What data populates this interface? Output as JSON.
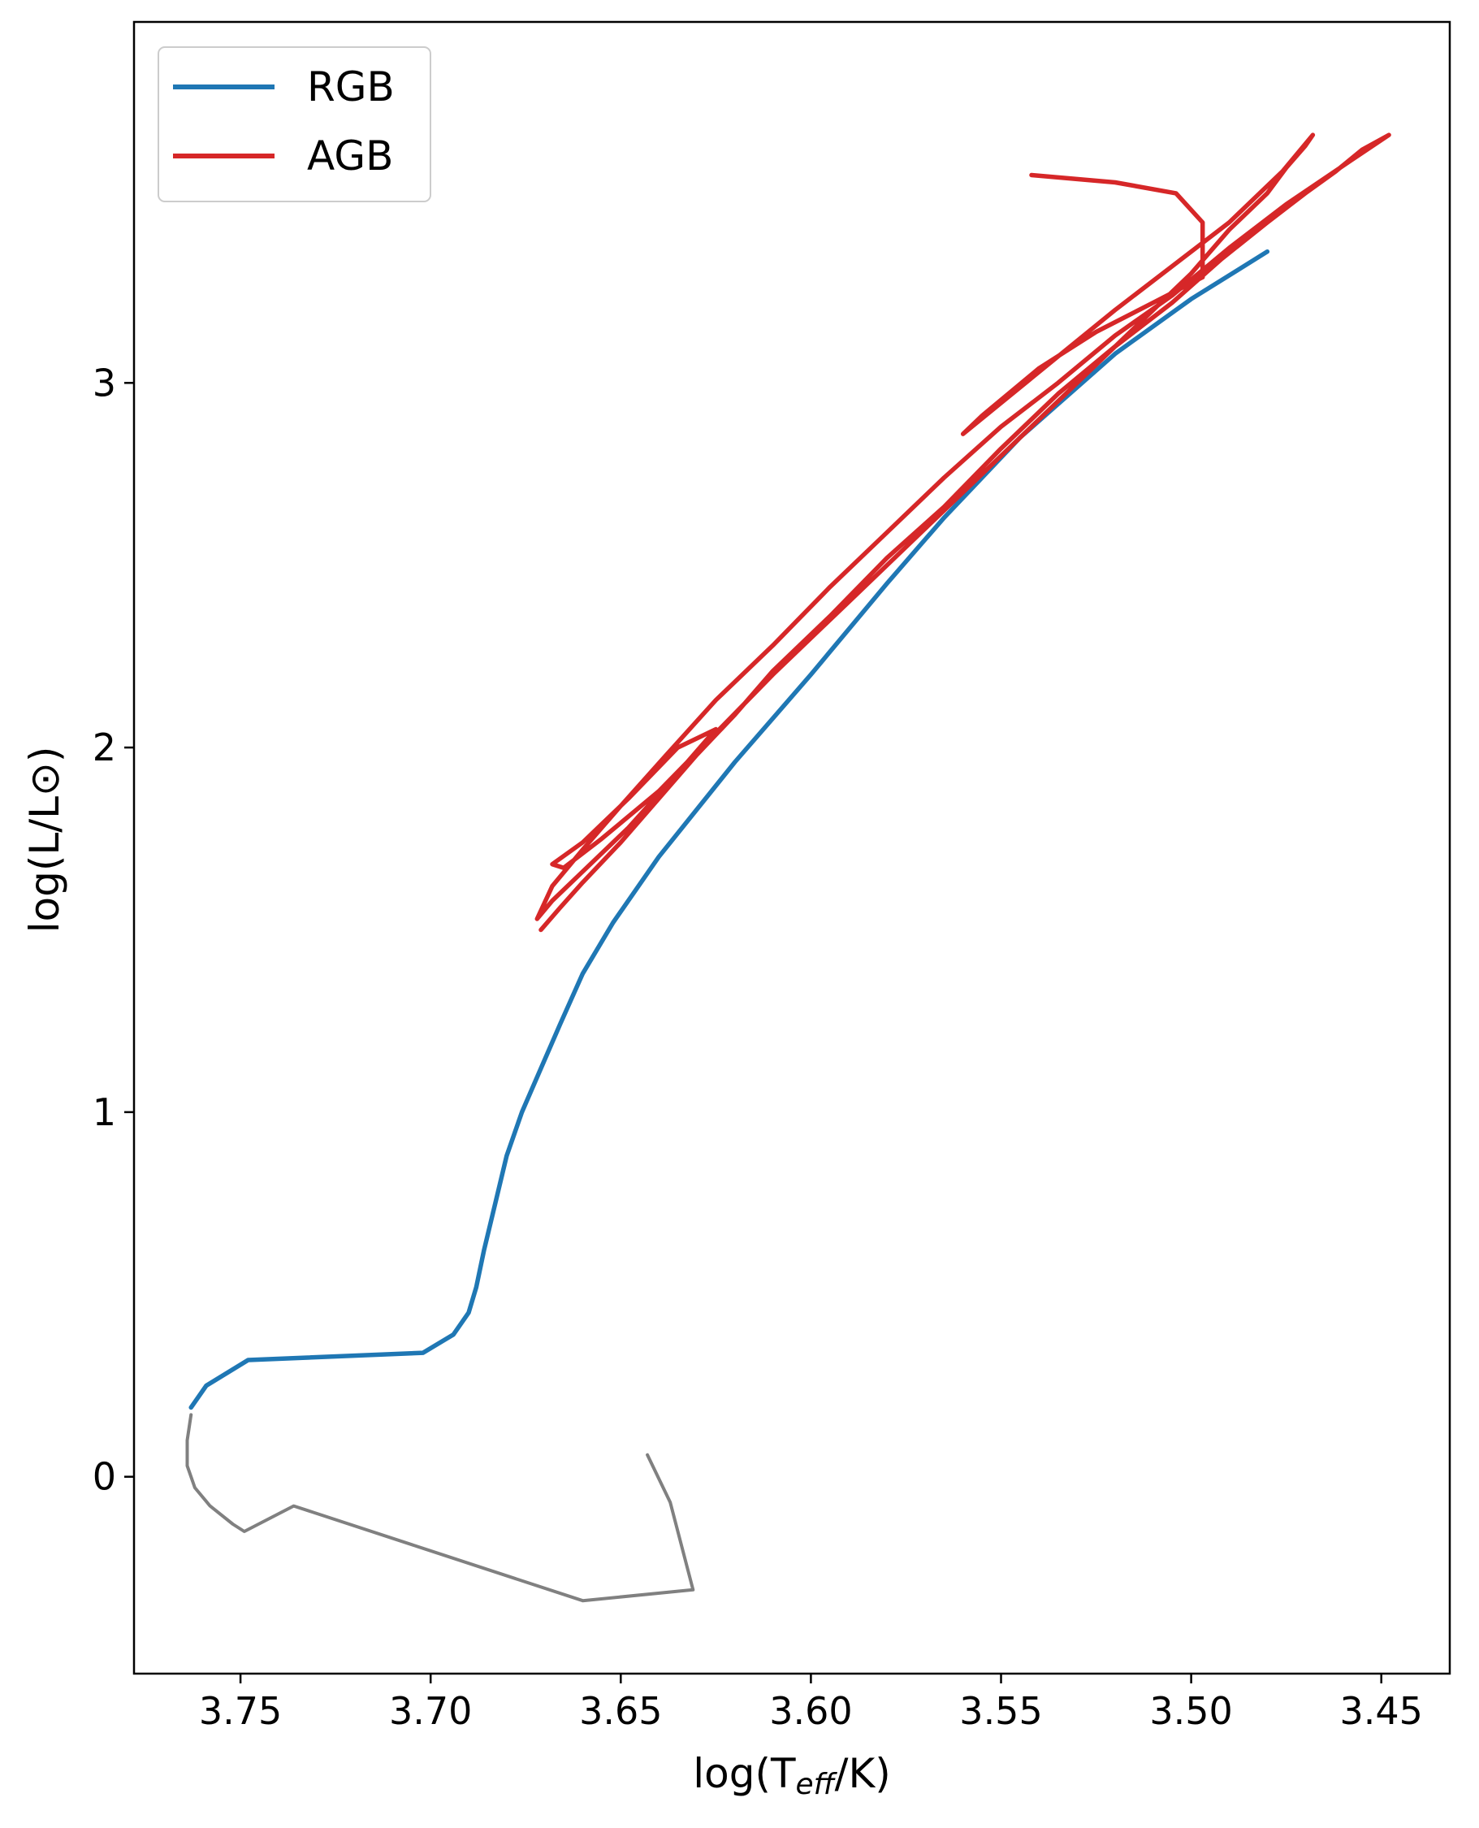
{
  "chart_data": {
    "type": "line",
    "xlabel": {
      "main": "log(T",
      "sub": "eff",
      "tail": "/K)"
    },
    "ylabel": "log(L/L⊙)",
    "xlim": [
      3.778,
      3.432
    ],
    "ylim": [
      -0.54,
      3.99
    ],
    "x_ticks": [
      3.75,
      3.7,
      3.65,
      3.6,
      3.55,
      3.5,
      3.45
    ],
    "x_tick_labels": [
      "3.75",
      "3.70",
      "3.65",
      "3.60",
      "3.55",
      "3.50",
      "3.45"
    ],
    "y_ticks": [
      0,
      1,
      2,
      3
    ],
    "y_tick_labels": [
      "0",
      "1",
      "2",
      "3"
    ],
    "grid": false,
    "legend": {
      "position": "top-left",
      "entries": [
        "RGB",
        "AGB"
      ]
    },
    "colors": {
      "RGB": "#1f77b4",
      "AGB": "#d62728",
      "pre_RGB": "#808080"
    },
    "series": [
      {
        "name": "RGB",
        "x": [
          3.763,
          3.759,
          3.748,
          3.702,
          3.694,
          3.69,
          3.688,
          3.686,
          3.683,
          3.68,
          3.676,
          3.671,
          3.666,
          3.66,
          3.652,
          3.64,
          3.62,
          3.6,
          3.58,
          3.565,
          3.545,
          3.52,
          3.5,
          3.48
        ],
        "y": [
          0.19,
          0.25,
          0.32,
          0.34,
          0.39,
          0.45,
          0.52,
          0.62,
          0.75,
          0.88,
          1.0,
          1.12,
          1.24,
          1.38,
          1.52,
          1.7,
          1.96,
          2.2,
          2.45,
          2.63,
          2.85,
          3.08,
          3.23,
          3.36
        ]
      },
      {
        "name": "AGB",
        "x": [
          3.671,
          3.666,
          3.66,
          3.65,
          3.64,
          3.63,
          3.62,
          3.61,
          3.595,
          3.58,
          3.565,
          3.55,
          3.535,
          3.52,
          3.505,
          3.492,
          3.48,
          3.47,
          3.462,
          3.455,
          3.448,
          3.458,
          3.475,
          3.49,
          3.505,
          3.52,
          3.535,
          3.55,
          3.565,
          3.58,
          3.595,
          3.61,
          3.625,
          3.638,
          3.65,
          3.66,
          3.668,
          3.672,
          3.668,
          3.66,
          3.648,
          3.635,
          3.625,
          3.635,
          3.648,
          3.66,
          3.668,
          3.665,
          3.655,
          3.64,
          3.625,
          3.61,
          3.59,
          3.57,
          3.55,
          3.53,
          3.515,
          3.5,
          3.49,
          3.48,
          3.475,
          3.47,
          3.468,
          3.476,
          3.49,
          3.505,
          3.52,
          3.54,
          3.56,
          3.555,
          3.54,
          3.525,
          3.51,
          3.497,
          3.497,
          3.504,
          3.52,
          3.542
        ],
        "y": [
          1.5,
          1.56,
          1.63,
          1.74,
          1.86,
          1.98,
          2.09,
          2.21,
          2.36,
          2.52,
          2.66,
          2.82,
          2.97,
          3.1,
          3.22,
          3.34,
          3.44,
          3.52,
          3.58,
          3.64,
          3.68,
          3.61,
          3.49,
          3.37,
          3.24,
          3.13,
          3.0,
          2.88,
          2.74,
          2.59,
          2.44,
          2.28,
          2.13,
          1.98,
          1.84,
          1.72,
          1.62,
          1.53,
          1.58,
          1.66,
          1.78,
          1.93,
          2.05,
          2.0,
          1.86,
          1.74,
          1.68,
          1.67,
          1.75,
          1.88,
          2.04,
          2.2,
          2.4,
          2.6,
          2.8,
          3.0,
          3.15,
          3.3,
          3.42,
          3.52,
          3.59,
          3.65,
          3.68,
          3.58,
          3.44,
          3.32,
          3.2,
          3.03,
          2.86,
          2.91,
          3.04,
          3.14,
          3.22,
          3.29,
          3.44,
          3.52,
          3.55,
          3.57
        ]
      },
      {
        "x": [
          3.763,
          3.764,
          3.764,
          3.762,
          3.758,
          3.752,
          3.749,
          3.736,
          3.66,
          3.631,
          3.637,
          3.643
        ],
        "y": [
          0.17,
          0.1,
          0.03,
          -0.03,
          -0.08,
          -0.13,
          -0.15,
          -0.08,
          -0.34,
          -0.31,
          -0.07,
          0.06
        ]
      }
    ]
  }
}
